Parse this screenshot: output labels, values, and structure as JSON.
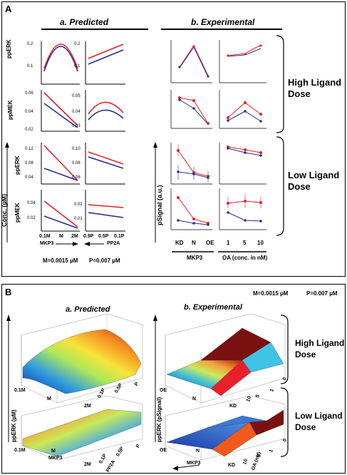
{
  "panelA": {
    "label": "A",
    "predicted_title": "a. Predicted",
    "experimental_title": "b. Experimental",
    "row_labels": [
      "ppERK",
      "ppMEK",
      "ppERK",
      "ppMEK"
    ],
    "conc_label": "Conc. (µM)",
    "psignal_label": "pSignal (a.u.)",
    "mkp3_ticks": [
      "0.1M",
      "M",
      "2M"
    ],
    "pp2a_ticks": [
      "0.9P",
      "0.5P",
      "0.1P"
    ],
    "mkp3_label": "MKP3",
    "pp2a_label": "PP2A",
    "exp_mkp3_ticks": [
      "KD",
      "N",
      "OE"
    ],
    "exp_mkp3_label": "MKP3",
    "oa_ticks": [
      "1",
      "5",
      "10"
    ],
    "oa_label": "OA (conc. in nM)",
    "m_note": "M=0.0015 µM",
    "p_note": "P=0.007 µM",
    "high_ligand": [
      "High Ligand",
      "Dose"
    ],
    "low_ligand": [
      "Low Ligand",
      "Dose"
    ],
    "yticks": {
      "r1c1": [
        "0.2",
        "0.1"
      ],
      "r1c2": [
        "0.2",
        "0.1"
      ],
      "r2c1": [
        "0.06",
        "0.04",
        "0.02"
      ],
      "r2c2": [
        "0.05",
        "0.04",
        "0.03"
      ],
      "r3c1": [
        "0.12",
        "0.08",
        "0.04"
      ],
      "r3c2": [
        "0.10",
        "0.08",
        "0.06"
      ],
      "r4c1": [
        "0.04",
        "0.02"
      ],
      "r4c2": [
        "0.02",
        "0.01"
      ]
    }
  },
  "panelB": {
    "label": "B",
    "m_note": "M=0.0015 µM",
    "p_note": "P=0.007 µM",
    "predicted_title": "a. Predicted",
    "experimental_title": "b. Experimental",
    "ylabel_pred": "ppERK (µM)",
    "ylabel_exp": "ppERK (pSignal)",
    "pred_x_ticks": [
      "0.1M",
      "M",
      "2M"
    ],
    "pred_z_ticks": [
      "0.1P",
      "0.5P",
      "P"
    ],
    "exp_x_ticks": [
      "OE",
      "N",
      "KD"
    ],
    "exp_z_ticks_top": [
      "10",
      "5",
      "1",
      "0"
    ],
    "exp_z_ticks_bottom": [
      "10",
      "5",
      "1",
      "0"
    ],
    "mkp3_label": "MKP3",
    "pp2a_label": "PP2A",
    "oa_label": "OA (nM)",
    "high_ligand": [
      "High Ligand",
      "Dose"
    ],
    "low_ligand": [
      "Low Ligand",
      "Dose"
    ]
  },
  "colors": {
    "red": "#e8202a",
    "blue": "#2a2f8f",
    "cyan": "#3ec3e6",
    "darkred": "#7a1010"
  }
}
